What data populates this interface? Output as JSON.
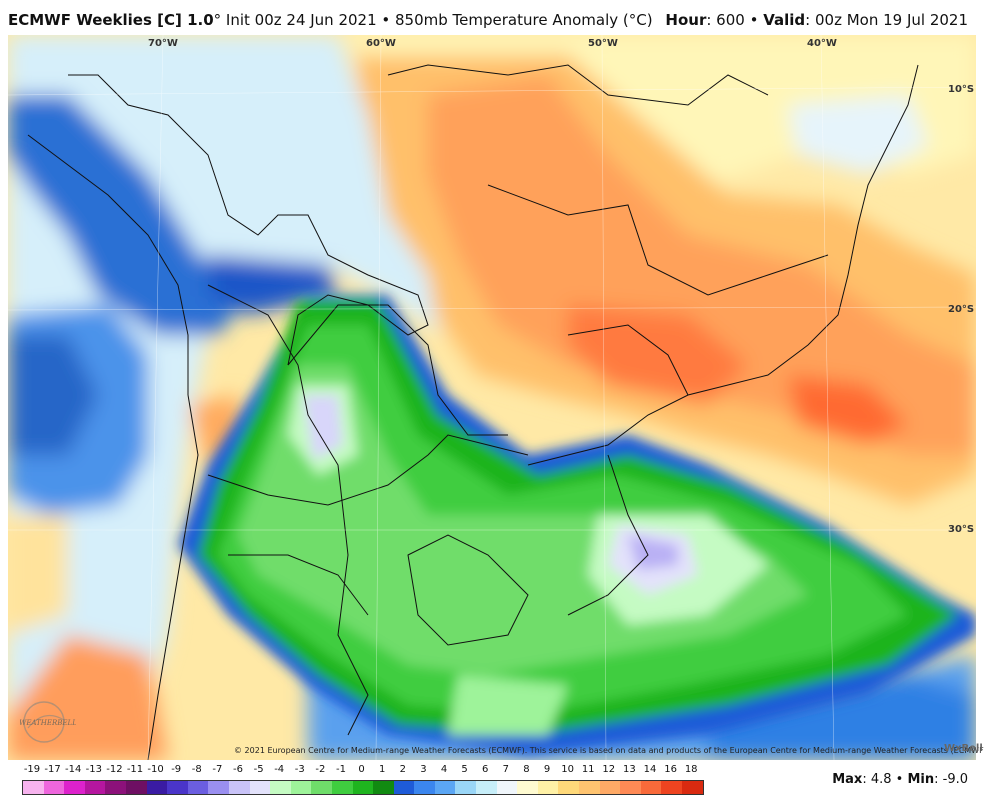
{
  "header": {
    "model": "ECMWF Weeklies [C] 1.0",
    "init": "° Init 00z 24 Jun 2021 • 850mb Temperature Anomaly (°C)",
    "hour_label": "Hour",
    "hour_value": ": 600 •",
    "valid_label": "Valid",
    "valid_value": ": 00z Mon 19 Jul 2021"
  },
  "map": {
    "lon_labels": [
      "70°W",
      "60°W",
      "50°W",
      "40°W"
    ],
    "lat_labels": [
      "10°S",
      "20°S",
      "30°S"
    ],
    "copyright": "© 2021 European Centre for Medium-range Weather Forecasts (ECMWF). This service is based on data and products of the European Centre for Medium-range Weather Forecasts (ECMWF).",
    "watermark": "WxBell",
    "logo_text": "WEATHERBELL"
  },
  "legend": {
    "ticks": [
      "-19",
      "-17",
      "-14",
      "-13",
      "-12",
      "-11",
      "-10",
      "-9",
      "-8",
      "-7",
      "-6",
      "-5",
      "-4",
      "-3",
      "-2",
      "-1",
      "0",
      "1",
      "2",
      "3",
      "4",
      "5",
      "6",
      "7",
      "8",
      "9",
      "10",
      "11",
      "12",
      "13",
      "14",
      "16",
      "18"
    ],
    "colors": [
      "#f7b3ee",
      "#ee66dd",
      "#dd22cc",
      "#b5169f",
      "#8c117a",
      "#6e0f63",
      "#3a1ba3",
      "#4a35c9",
      "#6b5ee0",
      "#9a8ff0",
      "#c9c3f8",
      "#e3e2fb",
      "#c5fbc3",
      "#9ef39a",
      "#6fdd6a",
      "#3fcd3f",
      "#1fb41f",
      "#118a11",
      "#1e5bd8",
      "#3b86ee",
      "#5ba6f4",
      "#9ad6f7",
      "#c7eef9",
      "#f0f6fb",
      "#fffbd1",
      "#fff1a6",
      "#ffd97a",
      "#ffc470",
      "#ffaa66",
      "#ff8a55",
      "#f96a3a",
      "#ee4420",
      "#d92a10"
    ]
  },
  "stats": {
    "max_label": "Max",
    "max_value": ": 4.8 •",
    "min_label": "Min",
    "min_value": ": -9.0"
  }
}
